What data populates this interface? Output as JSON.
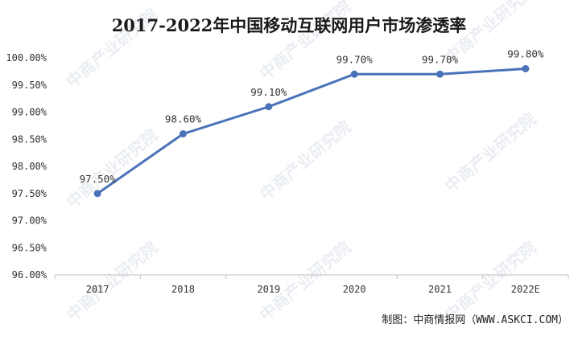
{
  "title": "2017-2022年中国移动互联网用户市场渗透率",
  "source": "制图：中商情报网（WWW.ASKCI.COM）",
  "watermark": "中商产业研究院",
  "colors": {
    "line": "#4a72b8",
    "grid": "#d9d9d9",
    "axis": "#bfbfbf"
  },
  "chart_data": {
    "type": "line",
    "categories": [
      "2017",
      "2018",
      "2019",
      "2020",
      "2021",
      "2022E"
    ],
    "series": [
      {
        "values": [
          97.5,
          98.6,
          99.1,
          99.7,
          99.7,
          99.8
        ],
        "labels": [
          "97.50%",
          "98.60%",
          "99.10%",
          "99.70%",
          "99.70%",
          "99.80%"
        ]
      }
    ],
    "ylim": [
      96.0,
      100.0
    ],
    "yticks": [
      96.0,
      96.5,
      97.0,
      97.5,
      98.0,
      98.5,
      99.0,
      99.5,
      100.0
    ],
    "ytick_labels": [
      "96.00%",
      "96.50%",
      "97.00%",
      "97.50%",
      "98.00%",
      "98.50%",
      "99.00%",
      "99.50%",
      "100.00%"
    ],
    "grid": false,
    "legend": "none",
    "xlabel": "",
    "ylabel": ""
  }
}
